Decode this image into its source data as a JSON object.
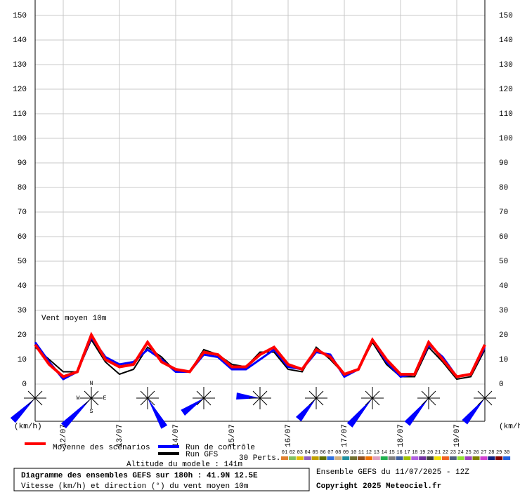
{
  "chart_data": {
    "type": "line",
    "annotation": "Vent moyen 10m",
    "y_unit_left": "(km/h)",
    "y_unit_right": "(km/h)",
    "categories": [
      null,
      null,
      "12/07",
      null,
      null,
      null,
      "13/07",
      null,
      null,
      null,
      "14/07",
      null,
      null,
      null,
      "15/07",
      null,
      null,
      null,
      "16/07",
      null,
      null,
      null,
      "17/07",
      null,
      null,
      null,
      "18/07",
      null,
      null,
      null,
      "19/07",
      null,
      null
    ],
    "ylim": [
      0,
      150
    ],
    "yticks": [
      0,
      10,
      20,
      30,
      40,
      50,
      60,
      70,
      80,
      90,
      100,
      110,
      120,
      130,
      140,
      150
    ],
    "grid": true,
    "series": [
      {
        "name": "Moyenne des scénarios",
        "color": "#ff0000",
        "values": [
          16,
          8,
          3,
          5,
          20,
          10,
          7,
          8,
          17,
          9,
          6,
          5,
          13,
          12,
          7,
          7,
          12,
          15,
          8,
          6,
          14,
          11,
          4,
          6,
          18,
          10,
          4,
          4,
          17,
          10,
          3,
          4,
          16
        ]
      },
      {
        "name": "Run de contrôle",
        "color": "#0000ff",
        "values": [
          17,
          9,
          2,
          5,
          19,
          11,
          8,
          9,
          14,
          10,
          5,
          5,
          12,
          11,
          6,
          6,
          10,
          14,
          7,
          6,
          13,
          12,
          3,
          6,
          18,
          9,
          3,
          4,
          16,
          11,
          3,
          4,
          15
        ]
      },
      {
        "name": "Run GFS",
        "color": "#000000",
        "values": [
          15,
          10,
          5,
          5,
          18,
          9,
          4,
          6,
          15,
          11,
          5,
          5,
          14,
          12,
          8,
          7,
          13,
          13,
          6,
          5,
          15,
          10,
          4,
          6,
          17,
          8,
          3,
          3,
          15,
          9,
          2,
          3,
          14
        ]
      }
    ],
    "wind_direction_deg": [
      45,
      45,
      330,
      55,
      95,
      40,
      40,
      40,
      40
    ],
    "compass_labels": [
      "N",
      "E",
      "S",
      "W"
    ],
    "perturbations_label": "30 Perts.",
    "perturbations": {
      "names": [
        "01",
        "02",
        "03",
        "04",
        "05",
        "06",
        "07",
        "08",
        "09",
        "10",
        "11",
        "12",
        "13",
        "14",
        "15",
        "16",
        "17",
        "18",
        "19",
        "20",
        "21",
        "22",
        "23",
        "24",
        "25",
        "26",
        "27",
        "28",
        "29",
        "30"
      ],
      "colors": [
        "#e08030",
        "#80c060",
        "#e0c000",
        "#9060c0",
        "#c0a000",
        "#607000",
        "#3070e0",
        "#d0b080",
        "#2090a0",
        "#707030",
        "#905020",
        "#f07000",
        "#e0a0c0",
        "#20b050",
        "#808080",
        "#4060a0",
        "#a0c000",
        "#b060e0",
        "#7030a0",
        "#404040",
        "#f0e000",
        "#f06020",
        "#506080",
        "#90e030",
        "#a040c0",
        "#808000",
        "#d040d0",
        "#102080",
        "#800000",
        "#2060e0"
      ]
    },
    "altitude": "Altitude du modele : 141m",
    "footer_title": "Diagramme des ensembles GEFS sur 180h : 41.9N 12.5E",
    "footer_subtitle": "Vitesse (km/h) et direction (°) du vent moyen 10m",
    "run_info": "Ensemble GEFS du 11/07/2025 - 12Z",
    "copyright": "Copyright 2025 Meteociel.fr"
  }
}
